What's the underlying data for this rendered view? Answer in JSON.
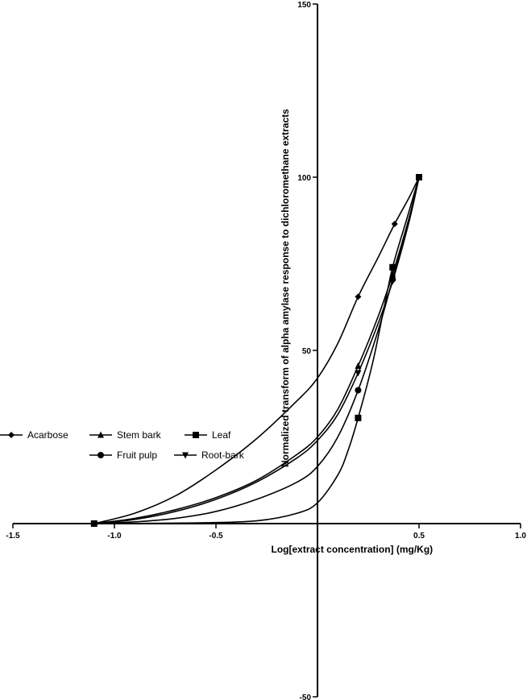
{
  "chart_data": {
    "type": "line",
    "title": "",
    "xlabel": "Log[extract concentration] (mg/Kg)",
    "ylabel": "Normalized transform of alpha amylase response to dichloromethane extracts",
    "xlim": [
      -1.5,
      1.0
    ],
    "ylim": [
      -50,
      150
    ],
    "xticks": [
      -1.5,
      -1.0,
      -0.5,
      0.5,
      1.0
    ],
    "xtick_labels": [
      "-1.5",
      "-1.0",
      "-0.5",
      "0.5",
      "1.0"
    ],
    "yticks": [
      -50,
      50,
      100,
      150
    ],
    "ytick_labels": [
      "-50",
      "50",
      "100",
      "150"
    ],
    "grid": false,
    "legend_position": "left-middle",
    "series": [
      {
        "name": "Acarbose",
        "marker": "diamond",
        "points": [
          [
            -1.1,
            0
          ],
          [
            0.2,
            65.5
          ],
          [
            0.38,
            86.5
          ],
          [
            0.5,
            100
          ]
        ],
        "curve": [
          [
            -1.1,
            0
          ],
          [
            -0.9,
            3
          ],
          [
            -0.7,
            8
          ],
          [
            -0.5,
            15.5
          ],
          [
            -0.3,
            24.5
          ],
          [
            -0.1,
            35.5
          ],
          [
            0.0,
            42
          ],
          [
            0.1,
            52
          ],
          [
            0.2,
            65.5
          ],
          [
            0.3,
            77
          ],
          [
            0.38,
            86.5
          ],
          [
            0.45,
            94
          ],
          [
            0.5,
            100
          ]
        ]
      },
      {
        "name": "Stem bark",
        "marker": "triangle-up",
        "points": [
          [
            -1.1,
            0
          ],
          [
            0.2,
            45.5
          ],
          [
            0.37,
            72
          ],
          [
            0.5,
            100
          ]
        ],
        "curve": [
          [
            -1.1,
            0
          ],
          [
            -0.9,
            1.5
          ],
          [
            -0.7,
            4
          ],
          [
            -0.5,
            7.5
          ],
          [
            -0.3,
            12.5
          ],
          [
            -0.1,
            20
          ],
          [
            0.0,
            25
          ],
          [
            0.1,
            33
          ],
          [
            0.2,
            45.5
          ],
          [
            0.3,
            60
          ],
          [
            0.37,
            72
          ],
          [
            0.45,
            88
          ],
          [
            0.5,
            100
          ]
        ]
      },
      {
        "name": "Leaf",
        "marker": "square",
        "points": [
          [
            -1.1,
            0
          ],
          [
            0.2,
            30.5
          ],
          [
            0.37,
            74
          ],
          [
            0.5,
            100
          ]
        ],
        "curve": [
          [
            -1.1,
            0
          ],
          [
            -0.6,
            0.2
          ],
          [
            -0.3,
            0.8
          ],
          [
            -0.1,
            3
          ],
          [
            0.0,
            6
          ],
          [
            0.1,
            14
          ],
          [
            0.15,
            21
          ],
          [
            0.2,
            30.5
          ],
          [
            0.27,
            46
          ],
          [
            0.32,
            60
          ],
          [
            0.37,
            74
          ],
          [
            0.44,
            88
          ],
          [
            0.5,
            100
          ]
        ]
      },
      {
        "name": "Fruit pulp",
        "marker": "circle",
        "points": [
          [
            -1.1,
            0
          ],
          [
            0.2,
            38.5
          ],
          [
            0.37,
            70.5
          ],
          [
            0.5,
            100
          ]
        ],
        "curve": [
          [
            -1.1,
            0
          ],
          [
            -0.9,
            0.5
          ],
          [
            -0.7,
            1.5
          ],
          [
            -0.5,
            3.5
          ],
          [
            -0.3,
            7
          ],
          [
            -0.1,
            12
          ],
          [
            0.0,
            16.5
          ],
          [
            0.1,
            25
          ],
          [
            0.2,
            38.5
          ],
          [
            0.3,
            56
          ],
          [
            0.37,
            70.5
          ],
          [
            0.45,
            87
          ],
          [
            0.5,
            100
          ]
        ]
      },
      {
        "name": "Root-bark",
        "marker": "triangle-down",
        "points": [
          [
            -1.1,
            0
          ],
          [
            0.2,
            43.5
          ],
          [
            0.37,
            70
          ],
          [
            0.5,
            100
          ]
        ],
        "curve": [
          [
            -1.1,
            0
          ],
          [
            -0.9,
            1.2
          ],
          [
            -0.7,
            3.5
          ],
          [
            -0.5,
            7
          ],
          [
            -0.3,
            12
          ],
          [
            -0.1,
            19
          ],
          [
            0.0,
            24
          ],
          [
            0.1,
            31.5
          ],
          [
            0.2,
            43.5
          ],
          [
            0.3,
            58
          ],
          [
            0.37,
            70
          ],
          [
            0.45,
            87
          ],
          [
            0.5,
            100
          ]
        ]
      }
    ]
  }
}
